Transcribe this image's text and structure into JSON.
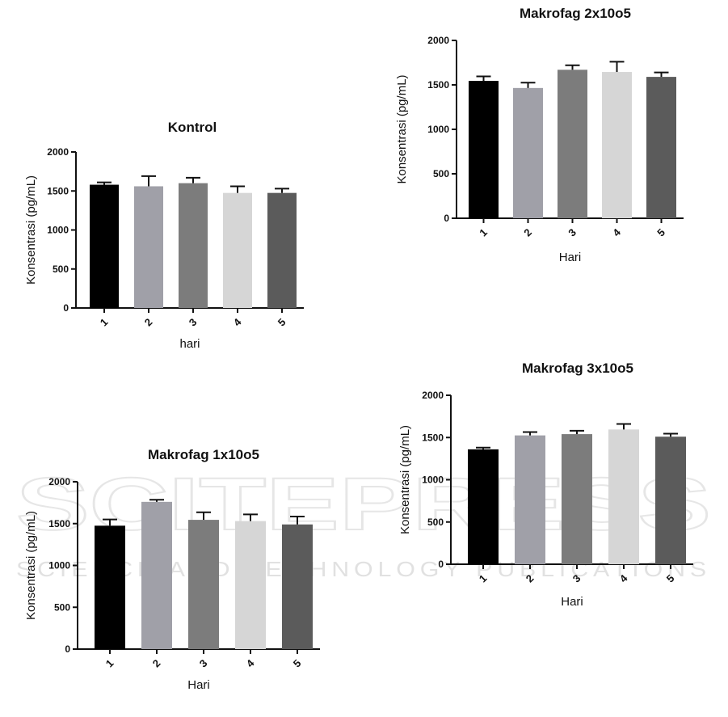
{
  "watermark": {
    "main_text": "SCITEPRESS",
    "sub_text": "SCIENCE AND TECHNOLOGY PUBLICATIONS"
  },
  "chart_data": [
    {
      "type": "bar",
      "title": "Kontrol",
      "xlabel": "hari",
      "ylabel": "Konsentrasi (pg/mL)",
      "categories": [
        "1",
        "2",
        "3",
        "4",
        "5"
      ],
      "values": [
        1580,
        1560,
        1600,
        1475,
        1475
      ],
      "errors": [
        30,
        130,
        70,
        85,
        55
      ],
      "ylim": [
        0,
        2000
      ],
      "yticks": [
        "0",
        "500",
        "1000",
        "1500",
        "2000"
      ],
      "colors": [
        "#000000",
        "#a0a0a8",
        "#7c7c7c",
        "#d6d6d6",
        "#5b5b5b"
      ],
      "grid": false,
      "legend": "none"
    },
    {
      "type": "bar",
      "title": "Makrofag 2x10o5",
      "xlabel": "Hari",
      "ylabel": "Konsentrasi (pg/mL)",
      "categories": [
        "1",
        "2",
        "3",
        "4",
        "5"
      ],
      "values": [
        1545,
        1465,
        1670,
        1645,
        1590
      ],
      "errors": [
        50,
        60,
        50,
        115,
        50
      ],
      "ylim": [
        0,
        2000
      ],
      "yticks": [
        "0",
        "500",
        "1000",
        "1500",
        "2000"
      ],
      "colors": [
        "#000000",
        "#a0a0a8",
        "#7c7c7c",
        "#d6d6d6",
        "#5b5b5b"
      ],
      "grid": false,
      "legend": "none"
    },
    {
      "type": "bar",
      "title": "Makrofag 1x10o5",
      "xlabel": "Hari",
      "ylabel": "Konsentrasi (pg/mL)",
      "categories": [
        "1",
        "2",
        "3",
        "4",
        "5"
      ],
      "values": [
        1475,
        1760,
        1545,
        1530,
        1490
      ],
      "errors": [
        75,
        25,
        90,
        80,
        95
      ],
      "ylim": [
        0,
        2000
      ],
      "yticks": [
        "0",
        "500",
        "1000",
        "1500",
        "2000"
      ],
      "colors": [
        "#000000",
        "#a0a0a8",
        "#7c7c7c",
        "#d6d6d6",
        "#5b5b5b"
      ],
      "grid": false,
      "legend": "none"
    },
    {
      "type": "bar",
      "title": "Makrofag 3x10o5",
      "xlabel": "Hari",
      "ylabel": "Konsentrasi (pg/mL)",
      "categories": [
        "1",
        "2",
        "3",
        "4",
        "5"
      ],
      "values": [
        1360,
        1525,
        1540,
        1595,
        1510
      ],
      "errors": [
        20,
        40,
        40,
        65,
        35
      ],
      "ylim": [
        0,
        2000
      ],
      "yticks": [
        "0",
        "500",
        "1000",
        "1500",
        "2000"
      ],
      "colors": [
        "#000000",
        "#a0a0a8",
        "#7c7c7c",
        "#d6d6d6",
        "#5b5b5b"
      ],
      "grid": false,
      "legend": "none"
    }
  ]
}
